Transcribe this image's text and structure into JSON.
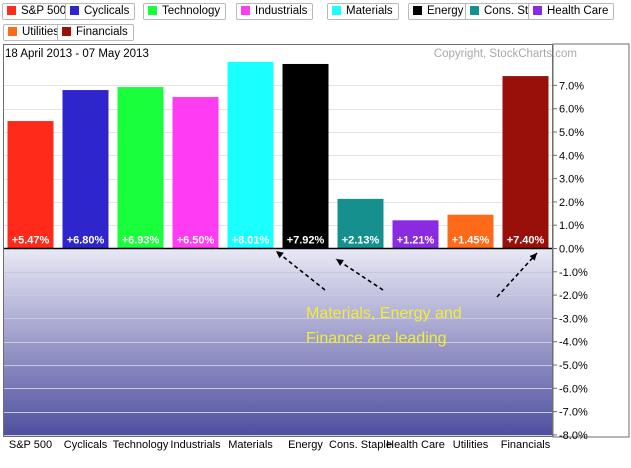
{
  "legend": [
    {
      "label": "S&P 500",
      "color": "#ff2a1a"
    },
    {
      "label": "Cyclicals",
      "color": "#2e26cc"
    },
    {
      "label": "Technology",
      "color": "#1aff3c"
    },
    {
      "label": "Industrials",
      "color": "#ff3cf2"
    },
    {
      "label": "Materials",
      "color": "#1affff"
    },
    {
      "label": "Energy",
      "color": "#000000"
    },
    {
      "label": "Cons. Staples",
      "color": "#15908f"
    },
    {
      "label": "Health Care",
      "color": "#8a2be2"
    },
    {
      "label": "Utilities",
      "color": "#ff6a1a"
    },
    {
      "label": "Financials",
      "color": "#990f0a"
    }
  ],
  "header": {
    "date_range": "18 April 2013 - 07 May 2013",
    "copyright": "Copyright, StockCharts.com"
  },
  "annotation": {
    "lines": [
      "Materials, Energy and",
      "Finance are leading"
    ],
    "color": "#f2ec3a"
  },
  "chart_data": {
    "type": "bar",
    "categories": [
      "S&P 500",
      "Cyclicals",
      "Technology",
      "Industrials",
      "Materials",
      "Energy",
      "Cons. Staple",
      "Health Care",
      "Utilities",
      "Financials"
    ],
    "values": [
      5.47,
      6.8,
      6.93,
      6.5,
      8.01,
      7.92,
      2.13,
      1.21,
      1.45,
      7.4
    ],
    "data_labels": [
      "+5.47%",
      "+6.80%",
      "+6.93%",
      "+6.50%",
      "+8.01%",
      "+7.92%",
      "+2.13%",
      "+1.21%",
      "+1.45%",
      "+7.40%"
    ],
    "colors": [
      "#ff2a1a",
      "#2e26cc",
      "#1aff3c",
      "#ff3cf2",
      "#1affff",
      "#000000",
      "#15908f",
      "#8a2be2",
      "#ff6a1a",
      "#990f0a"
    ],
    "y_ticks": [
      7,
      6,
      5,
      4,
      3,
      2,
      1,
      0,
      -1,
      -2,
      -3,
      -4,
      -5,
      -6,
      -7,
      -8
    ],
    "y_tick_labels": [
      "7.0%",
      "6.0%",
      "5.0%",
      "4.0%",
      "3.0%",
      "2.0%",
      "1.0%",
      "0.0%",
      "-1.0%",
      "-2.0%",
      "-3.0%",
      "-4.0%",
      "-5.0%",
      "-6.0%",
      "-7.0%",
      "-8.0%"
    ],
    "ylim": [
      -8.2,
      8.2
    ],
    "grid": true,
    "y_axis_side": "right",
    "negative_region_gradient": [
      "#e9e9f6",
      "#4d4d9e"
    ]
  }
}
